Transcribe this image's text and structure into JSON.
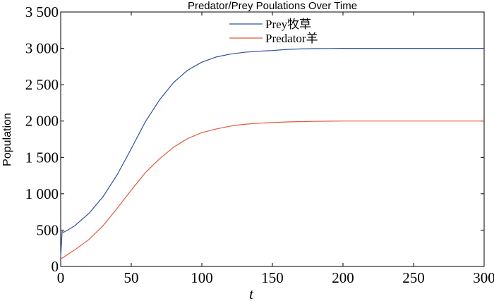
{
  "chart_data": {
    "type": "line",
    "title": "Predator/Prey Poulations Over Time",
    "xlabel": "t",
    "ylabel": "Population",
    "xlim": [
      0,
      300
    ],
    "ylim": [
      0,
      3500
    ],
    "xticks": [
      0,
      50,
      100,
      150,
      200,
      250,
      300
    ],
    "xtick_labels": [
      "0",
      "50",
      "100",
      "150",
      "200",
      "250",
      "300"
    ],
    "yticks": [
      0,
      500,
      1000,
      1500,
      2000,
      2500,
      3000,
      3500
    ],
    "ytick_labels": [
      "0",
      "500",
      "1 000",
      "1 500",
      "2 000",
      "2 500",
      "3 000",
      "3 500"
    ],
    "grid": false,
    "legend_position": "top-center",
    "x": [
      0,
      1,
      2,
      3,
      5,
      10,
      20,
      30,
      40,
      50,
      60,
      70,
      80,
      90,
      100,
      110,
      120,
      130,
      140,
      150,
      160,
      170,
      180,
      190,
      200,
      220,
      240,
      260,
      280,
      300
    ],
    "series": [
      {
        "name": "Prey牧草",
        "color": "#2f4f9f",
        "values": [
          130,
          480,
          470,
          480,
          500,
          560,
          730,
          960,
          1260,
          1620,
          1990,
          2290,
          2530,
          2700,
          2810,
          2880,
          2920,
          2945,
          2960,
          2970,
          2985,
          2992,
          2996,
          2998,
          3000,
          3000,
          3000,
          3000,
          3000,
          3000
        ]
      },
      {
        "name": "Predator羊",
        "color": "#e05a3c",
        "values": [
          110,
          115,
          125,
          140,
          165,
          230,
          370,
          560,
          800,
          1050,
          1290,
          1480,
          1640,
          1760,
          1840,
          1890,
          1930,
          1955,
          1970,
          1980,
          1988,
          1992,
          1995,
          1998,
          2000,
          2000,
          2000,
          2000,
          2000,
          2000
        ]
      }
    ]
  }
}
